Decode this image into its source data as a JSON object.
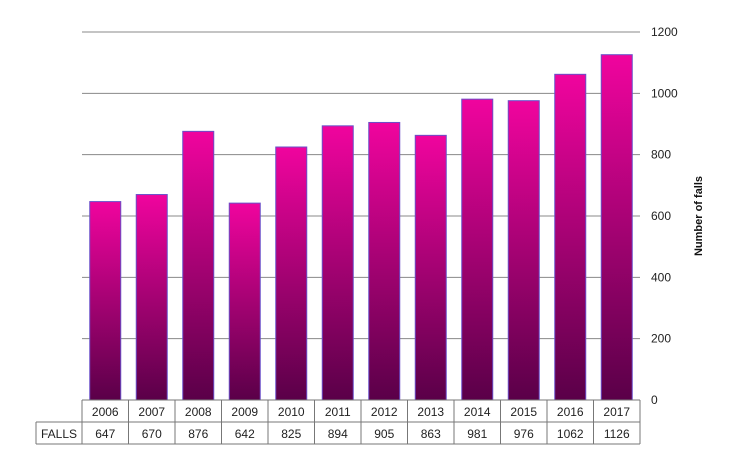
{
  "chart_data": {
    "type": "bar",
    "categories": [
      "2006",
      "2007",
      "2008",
      "2009",
      "2010",
      "2011",
      "2012",
      "2013",
      "2014",
      "2015",
      "2016",
      "2017"
    ],
    "series": [
      {
        "name": "FALLS",
        "values": [
          647,
          670,
          876,
          642,
          825,
          894,
          905,
          863,
          981,
          976,
          1062,
          1126
        ]
      }
    ],
    "ylabel": "Number of falls",
    "ylim": [
      0,
      1200
    ],
    "yticks": [
      0,
      200,
      400,
      600,
      800,
      1000,
      1200
    ],
    "yaxis_side": "right",
    "grid": true,
    "data_table": true,
    "colors": {
      "bar_top": "#f0049e",
      "bar_bottom": "#5a0048",
      "bar_edge": "#6a4fc8",
      "grid": "#888888"
    }
  }
}
